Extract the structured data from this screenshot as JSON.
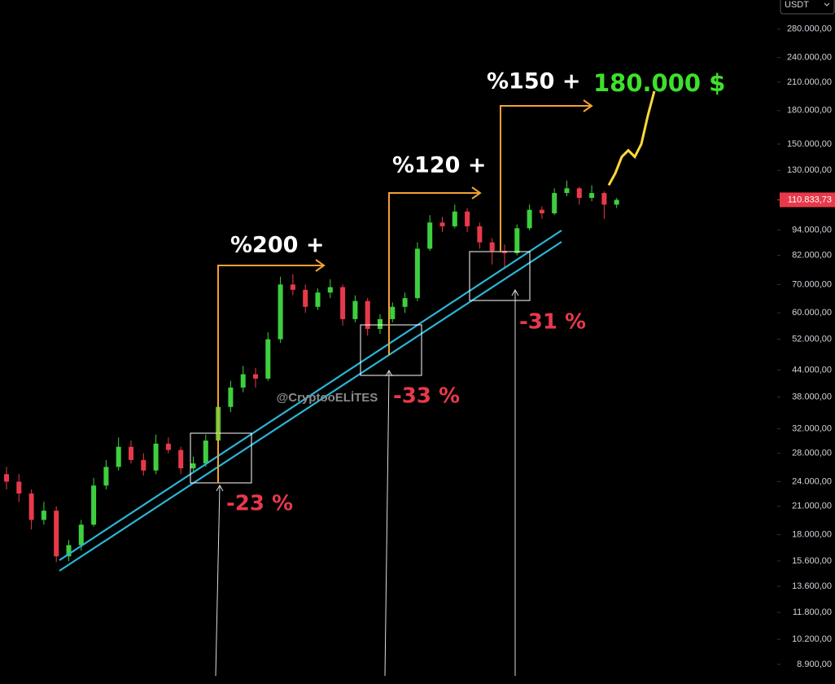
{
  "chart_data": {
    "type": "candlestick",
    "currency": "USDT",
    "log_scale": true,
    "ylim": [
      8000,
      328000
    ],
    "yticks": [
      {
        "value": 280000,
        "label": "280.000,00"
      },
      {
        "value": 240000,
        "label": "240.000,00"
      },
      {
        "value": 210000,
        "label": "210.000,00"
      },
      {
        "value": 180000,
        "label": "180.000,00"
      },
      {
        "value": 150000,
        "label": "150.000,00"
      },
      {
        "value": 130000,
        "label": "130.000,00"
      },
      {
        "value": 94000,
        "label": "94.000,00"
      },
      {
        "value": 82000,
        "label": "82.000,00"
      },
      {
        "value": 70000,
        "label": "70.000,00"
      },
      {
        "value": 60000,
        "label": "60.000,00"
      },
      {
        "value": 52000,
        "label": "52.000,00"
      },
      {
        "value": 44000,
        "label": "44.000,00"
      },
      {
        "value": 38000,
        "label": "38.000,00"
      },
      {
        "value": 32000,
        "label": "32.000,00"
      },
      {
        "value": 28000,
        "label": "28.000,00"
      },
      {
        "value": 24000,
        "label": "24.000,00"
      },
      {
        "value": 21000,
        "label": "21.000,00"
      },
      {
        "value": 18000,
        "label": "18.000,00"
      },
      {
        "value": 15600,
        "label": "15.600,00"
      },
      {
        "value": 13600,
        "label": "13.600,00"
      },
      {
        "value": 11800,
        "label": "11.800,00"
      },
      {
        "value": 10200,
        "label": "10.200,00"
      },
      {
        "value": 8900,
        "label": "8.900,00"
      }
    ],
    "up_color": "#3ecf3e",
    "down_color": "#e8394b",
    "open": [
      25000,
      24000,
      22500,
      19500,
      20500,
      16000,
      17000,
      19000,
      23500,
      26000,
      29000,
      27000,
      25500,
      29500,
      28500,
      25800,
      26500,
      30000,
      36000,
      40000,
      43000,
      42000,
      52000,
      70000,
      68000,
      62000,
      67000,
      69000,
      58000,
      64000,
      55000,
      58000,
      62000,
      65000,
      85000,
      98000,
      96000,
      104000,
      96000,
      88000,
      84000,
      83000,
      95000,
      105000,
      103000,
      115000,
      118000,
      112000,
      115000,
      108000
    ],
    "high": [
      26000,
      25000,
      23000,
      21500,
      21000,
      17500,
      19500,
      24500,
      27000,
      30500,
      30000,
      28000,
      31000,
      30500,
      29000,
      27500,
      31000,
      37500,
      41500,
      45000,
      44500,
      54000,
      73000,
      74000,
      70000,
      68500,
      72000,
      70000,
      66000,
      65000,
      59500,
      63500,
      67000,
      88000,
      102000,
      101000,
      108000,
      106000,
      98000,
      90000,
      87000,
      97000,
      108000,
      107000,
      118000,
      123000,
      119000,
      120000,
      116000,
      112000
    ],
    "low": [
      23000,
      21500,
      18500,
      19000,
      15500,
      15600,
      16500,
      18800,
      23000,
      25500,
      26500,
      24800,
      25000,
      28000,
      25000,
      25200,
      26000,
      29500,
      35000,
      39000,
      40000,
      41500,
      51000,
      66000,
      60000,
      61000,
      65000,
      56000,
      57000,
      53000,
      53500,
      57000,
      60000,
      64000,
      84000,
      93000,
      95000,
      93000,
      85000,
      78000,
      76000,
      82000,
      94000,
      100000,
      102000,
      113000,
      108000,
      110000,
      100000,
      106000
    ],
    "close": [
      24000,
      22500,
      19500,
      20500,
      16000,
      17000,
      19000,
      23500,
      26000,
      29000,
      27000,
      25500,
      29500,
      28500,
      25800,
      26500,
      30000,
      36000,
      40000,
      43000,
      42000,
      52000,
      70000,
      68000,
      62000,
      67000,
      69000,
      58000,
      64000,
      55000,
      58000,
      62000,
      65000,
      85000,
      98000,
      96000,
      104000,
      96000,
      88000,
      84000,
      83000,
      95000,
      105000,
      103000,
      115000,
      118000,
      112000,
      115000,
      108000,
      110833.73
    ],
    "last_price": {
      "value": 110833.73,
      "label": "110.833,73"
    },
    "projection": {
      "color": "#ffd93b",
      "values": [
        120000,
        128000,
        140000,
        145000,
        140000,
        150000,
        175000,
        200000
      ]
    },
    "watermark": "@CryptooELİTES",
    "annotations": {
      "gain1": "%200 +",
      "gain2": "%120 +",
      "gain3": "%150 +",
      "target": "180.000 $",
      "drop1": "-23 %",
      "drop2": "-33 %",
      "drop3": "-31 %"
    }
  }
}
